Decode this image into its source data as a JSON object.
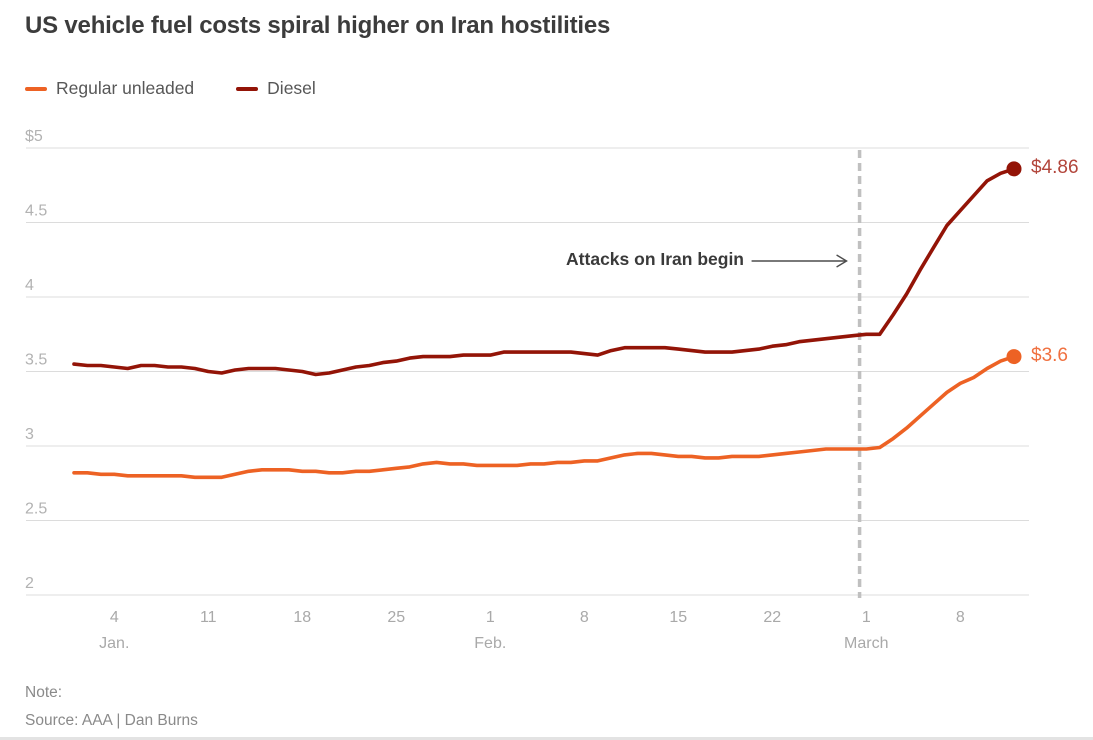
{
  "header": {
    "title": "US vehicle fuel costs spiral higher on Iran hostilities"
  },
  "legend": {
    "items": [
      {
        "label": "Regular unleaded",
        "color": "#ed6224"
      },
      {
        "label": "Diesel",
        "color": "#931407"
      }
    ]
  },
  "chart_data": {
    "type": "line",
    "title": "US vehicle fuel costs spiral higher on Iran hostilities",
    "grid": true,
    "legend_position": "top-left",
    "ylim": [
      2,
      5
    ],
    "y_ticks": [
      {
        "value": 5,
        "label": "$5"
      },
      {
        "value": 4.5,
        "label": "4.5"
      },
      {
        "value": 4,
        "label": "4"
      },
      {
        "value": 3.5,
        "label": "3.5"
      },
      {
        "value": 3,
        "label": "3"
      },
      {
        "value": 2.5,
        "label": "2.5"
      },
      {
        "value": 2,
        "label": "2"
      }
    ],
    "x_ticks": [
      {
        "day_index": 3,
        "label": "4",
        "month_label": "Jan."
      },
      {
        "day_index": 10,
        "label": "11"
      },
      {
        "day_index": 17,
        "label": "18"
      },
      {
        "day_index": 24,
        "label": "25"
      },
      {
        "day_index": 31,
        "label": "1",
        "month_label": "Feb."
      },
      {
        "day_index": 38,
        "label": "8"
      },
      {
        "day_index": 45,
        "label": "15"
      },
      {
        "day_index": 52,
        "label": "22"
      },
      {
        "day_index": 59,
        "label": "1",
        "month_label": "March"
      },
      {
        "day_index": 66,
        "label": "8"
      }
    ],
    "annotation": {
      "text": "Attacks on Iran begin",
      "day_index": 58.5
    },
    "x": [
      "Jan. 1",
      "Jan. 2",
      "Jan. 3",
      "Jan. 4",
      "Jan. 5",
      "Jan. 6",
      "Jan. 7",
      "Jan. 8",
      "Jan. 9",
      "Jan. 10",
      "Jan. 11",
      "Jan. 12",
      "Jan. 13",
      "Jan. 14",
      "Jan. 15",
      "Jan. 16",
      "Jan. 17",
      "Jan. 18",
      "Jan. 19",
      "Jan. 20",
      "Jan. 21",
      "Jan. 22",
      "Jan. 23",
      "Jan. 24",
      "Jan. 25",
      "Jan. 26",
      "Jan. 27",
      "Jan. 28",
      "Jan. 29",
      "Jan. 30",
      "Jan. 31",
      "Feb. 1",
      "Feb. 2",
      "Feb. 3",
      "Feb. 4",
      "Feb. 5",
      "Feb. 6",
      "Feb. 7",
      "Feb. 8",
      "Feb. 9",
      "Feb. 10",
      "Feb. 11",
      "Feb. 12",
      "Feb. 13",
      "Feb. 14",
      "Feb. 15",
      "Feb. 16",
      "Feb. 17",
      "Feb. 18",
      "Feb. 19",
      "Feb. 20",
      "Feb. 21",
      "Feb. 22",
      "Feb. 23",
      "Feb. 24",
      "Feb. 25",
      "Feb. 26",
      "Feb. 27",
      "Feb. 28",
      "March 1",
      "March 2",
      "March 3",
      "March 4",
      "March 5",
      "March 6",
      "March 7",
      "March 8",
      "March 9",
      "March 10",
      "March 11",
      "March 12"
    ],
    "series": [
      {
        "name": "Regular unleaded",
        "color": "#ed6224",
        "end_label": "$3.6",
        "end_label_color": "#f0703f",
        "end_value": 3.6,
        "values": [
          2.82,
          2.82,
          2.81,
          2.81,
          2.8,
          2.8,
          2.8,
          2.8,
          2.8,
          2.79,
          2.79,
          2.79,
          2.81,
          2.83,
          2.84,
          2.84,
          2.84,
          2.83,
          2.83,
          2.82,
          2.82,
          2.83,
          2.83,
          2.84,
          2.85,
          2.86,
          2.88,
          2.89,
          2.88,
          2.88,
          2.87,
          2.87,
          2.87,
          2.87,
          2.88,
          2.88,
          2.89,
          2.89,
          2.9,
          2.9,
          2.92,
          2.94,
          2.95,
          2.95,
          2.94,
          2.93,
          2.93,
          2.92,
          2.92,
          2.93,
          2.93,
          2.93,
          2.94,
          2.95,
          2.96,
          2.97,
          2.98,
          2.98,
          2.98,
          2.98,
          2.99,
          3.05,
          3.12,
          3.2,
          3.28,
          3.36,
          3.42,
          3.46,
          3.52,
          3.57,
          3.6
        ]
      },
      {
        "name": "Diesel",
        "color": "#931407",
        "end_label": "$4.86",
        "end_label_color": "#b2453b",
        "end_value": 4.86,
        "values": [
          3.55,
          3.54,
          3.54,
          3.53,
          3.52,
          3.54,
          3.54,
          3.53,
          3.53,
          3.52,
          3.5,
          3.49,
          3.51,
          3.52,
          3.52,
          3.52,
          3.51,
          3.5,
          3.48,
          3.49,
          3.51,
          3.53,
          3.54,
          3.56,
          3.57,
          3.59,
          3.6,
          3.6,
          3.6,
          3.61,
          3.61,
          3.61,
          3.63,
          3.63,
          3.63,
          3.63,
          3.63,
          3.63,
          3.62,
          3.61,
          3.64,
          3.66,
          3.66,
          3.66,
          3.66,
          3.65,
          3.64,
          3.63,
          3.63,
          3.63,
          3.64,
          3.65,
          3.67,
          3.68,
          3.7,
          3.71,
          3.72,
          3.73,
          3.74,
          3.75,
          3.75,
          3.88,
          4.02,
          4.18,
          4.33,
          4.48,
          4.58,
          4.68,
          4.78,
          4.83,
          4.86
        ]
      }
    ]
  },
  "footer": {
    "note": "Note:",
    "source": "Source: AAA | Dan Burns"
  }
}
